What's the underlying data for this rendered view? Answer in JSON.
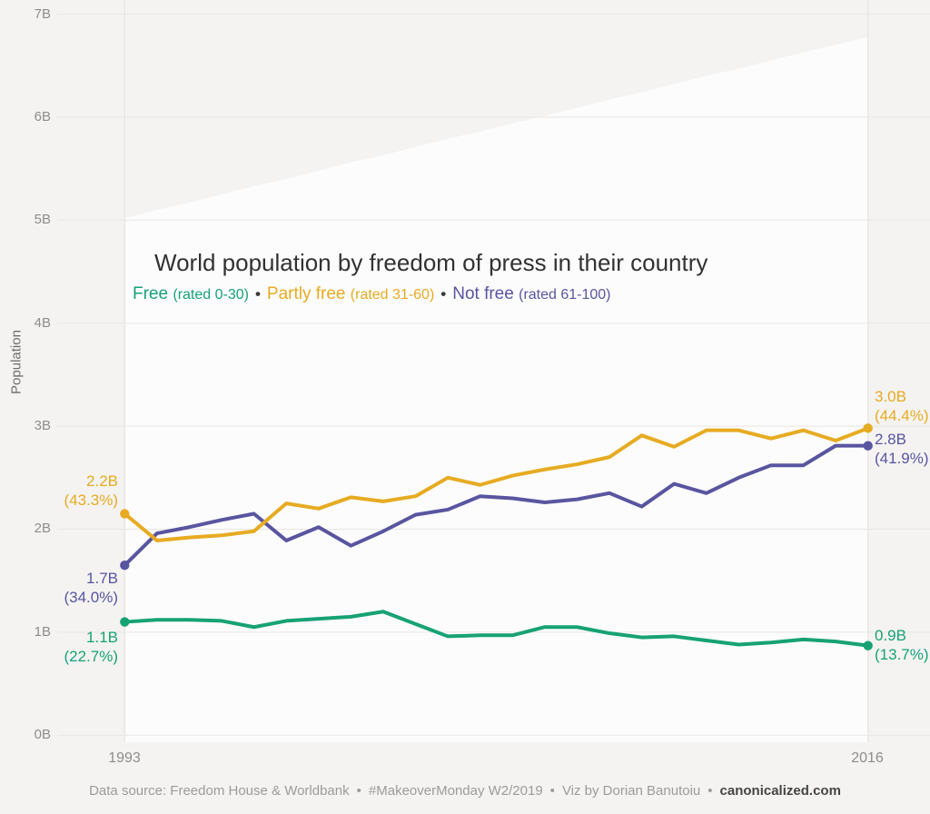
{
  "header": {
    "title": "World population by freedom of press in their country"
  },
  "legend": {
    "separator": "•",
    "items": [
      {
        "name": "Free",
        "rating": "(rated 0-30)"
      },
      {
        "name": "Partly free",
        "rating": "(rated 31-60)"
      },
      {
        "name": "Not free",
        "rating": "(rated 61-100)"
      }
    ]
  },
  "y_axis": {
    "label": "Population",
    "ticks": [
      "0B",
      "1B",
      "2B",
      "3B",
      "4B",
      "5B",
      "6B",
      "7B"
    ]
  },
  "x_axis": {
    "ticks": [
      "1993",
      "2016"
    ]
  },
  "annotations": {
    "start": {
      "partly_free": {
        "value": "2.2B",
        "pct": "(43.3%)"
      },
      "not_free": {
        "value": "1.7B",
        "pct": "(34.0%)"
      },
      "free": {
        "value": "1.1B",
        "pct": "(22.7%)"
      }
    },
    "end": {
      "partly_free": {
        "value": "3.0B",
        "pct": "(44.4%)"
      },
      "not_free": {
        "value": "2.8B",
        "pct": "(41.9%)"
      },
      "free": {
        "value": "0.9B",
        "pct": "(13.7%)"
      }
    }
  },
  "footer": {
    "separator": "•",
    "parts": [
      "Data source: Freedom House & Worldbank",
      "#MakeoverMonday W2/2019",
      "Viz by Dorian Banutoiu"
    ],
    "site": "canonicalized.com"
  },
  "colors": {
    "background": "#F4F3F2",
    "area_fill": "#FCFCFC",
    "gridline": "#E8E6E3",
    "axis_text": "#8E8C8C",
    "title_text": "#323232"
  },
  "chart_data": {
    "type": "line",
    "title": "World population by freedom of press in their country",
    "xlabel": "",
    "ylabel": "Population",
    "units": "billions of people",
    "ylim": [
      0,
      7
    ],
    "yticks": [
      "0B",
      "1B",
      "2B",
      "3B",
      "4B",
      "5B",
      "6B",
      "7B"
    ],
    "grid": "horizontal",
    "legend_position": "top-inline",
    "x": [
      1993,
      1994,
      1995,
      1996,
      1997,
      1998,
      1999,
      2000,
      2001,
      2002,
      2003,
      2004,
      2005,
      2006,
      2007,
      2008,
      2009,
      2010,
      2011,
      2012,
      2013,
      2014,
      2015,
      2016
    ],
    "series": [
      {
        "key": "free",
        "name": "Free (rated 0-30)",
        "color": "#17A274",
        "start_label": "1.1B (22.7%)",
        "end_label": "0.9B (13.7%)",
        "values": [
          1.1,
          1.12,
          1.12,
          1.11,
          1.05,
          1.11,
          1.13,
          1.15,
          1.2,
          1.08,
          0.96,
          0.97,
          0.97,
          1.05,
          1.05,
          0.99,
          0.95,
          0.96,
          0.92,
          0.88,
          0.9,
          0.93,
          0.91,
          0.87
        ]
      },
      {
        "key": "partly_free",
        "name": "Partly free (rated 31-60)",
        "color": "#E7AB22",
        "start_label": "2.2B (43.3%)",
        "end_label": "3.0B (44.4%)",
        "values": [
          2.15,
          1.89,
          1.92,
          1.94,
          1.98,
          2.25,
          2.2,
          2.31,
          2.27,
          2.32,
          2.5,
          2.43,
          2.52,
          2.58,
          2.63,
          2.7,
          2.91,
          2.8,
          2.96,
          2.96,
          2.88,
          2.96,
          2.86,
          2.98
        ]
      },
      {
        "key": "not_free",
        "name": "Not free (rated 61-100)",
        "color": "#5955A0",
        "start_label": "1.7B (34.0%)",
        "end_label": "2.8B (41.9%)",
        "values": [
          1.65,
          1.96,
          2.02,
          2.09,
          2.15,
          1.89,
          2.02,
          1.84,
          1.98,
          2.14,
          2.19,
          2.32,
          2.3,
          2.26,
          2.29,
          2.35,
          2.22,
          2.44,
          2.35,
          2.5,
          2.62,
          2.62,
          2.81,
          2.81
        ]
      }
    ],
    "total_area": {
      "name": "Total world population (background area)",
      "values": [
        5.02,
        5.1,
        5.17,
        5.25,
        5.33,
        5.4,
        5.48,
        5.56,
        5.63,
        5.71,
        5.79,
        5.86,
        5.94,
        6.01,
        6.09,
        6.17,
        6.24,
        6.32,
        6.4,
        6.47,
        6.55,
        6.63,
        6.7,
        6.78
      ]
    }
  }
}
